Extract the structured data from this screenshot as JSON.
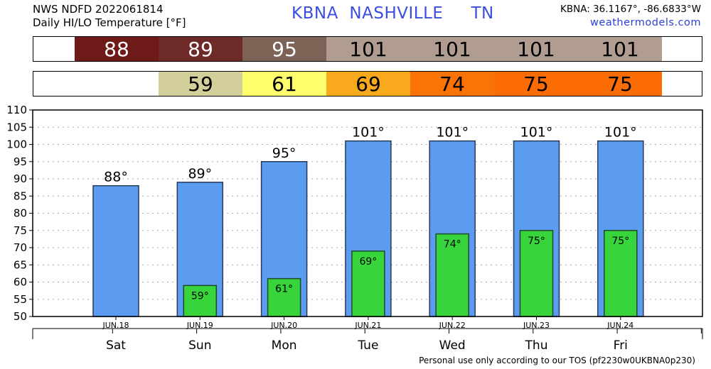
{
  "header": {
    "line1": "NWS NDFD 2022061814",
    "line2": "Daily HI/LO Temperature [°F]",
    "title": "KBNA  NASHVILLE     TN",
    "coords": "KBNA: 36.1167°, -86.6833°W",
    "site": "weathermodels.com"
  },
  "footer": "Personal use only according to our TOS (pf2230w0UKBNA0p230)",
  "highs_strip": [
    {
      "value": "88",
      "color": "#6e1a18",
      "text_color": "#ffffff"
    },
    {
      "value": "89",
      "color": "#6e2a26",
      "text_color": "#ffffff"
    },
    {
      "value": "95",
      "color": "#7d6256",
      "text_color": "#ffffff"
    },
    {
      "value": "101",
      "color": "#b09c91",
      "text_color": "#000000"
    },
    {
      "value": "101",
      "color": "#b09c91",
      "text_color": "#000000"
    },
    {
      "value": "101",
      "color": "#b09c91",
      "text_color": "#000000"
    },
    {
      "value": "101",
      "color": "#b09c91",
      "text_color": "#000000"
    }
  ],
  "lows_strip": [
    {
      "value": "",
      "color": "#ffffff",
      "text_color": "#000000"
    },
    {
      "value": "59",
      "color": "#d2cf9a",
      "text_color": "#000000"
    },
    {
      "value": "61",
      "color": "#ffff6e",
      "text_color": "#000000"
    },
    {
      "value": "69",
      "color": "#f9a91c",
      "text_color": "#000000"
    },
    {
      "value": "74",
      "color": "#fb7205",
      "text_color": "#000000"
    },
    {
      "value": "75",
      "color": "#fb6c05",
      "text_color": "#000000"
    },
    {
      "value": "75",
      "color": "#fb6c05",
      "text_color": "#000000"
    }
  ],
  "chart_data": {
    "type": "bar",
    "categories": [
      "Sat",
      "Sun",
      "Mon",
      "Tue",
      "Wed",
      "Thu",
      "Fri"
    ],
    "dates": [
      "JUN.18",
      "JUN.19",
      "JUN.20",
      "JUN.21",
      "JUN.22",
      "JUN.23",
      "JUN.24"
    ],
    "series": [
      {
        "values": [
          88,
          89,
          95,
          101,
          101,
          101,
          101
        ],
        "color": "#5b9cf0",
        "labels": [
          "88°",
          "89°",
          "95°",
          "101°",
          "101°",
          "101°",
          "101°"
        ]
      },
      {
        "values": [
          null,
          59,
          61,
          69,
          74,
          75,
          75
        ],
        "color": "#37d43b",
        "labels": [
          "",
          "59°",
          "61°",
          "69°",
          "74°",
          "75°",
          "75°"
        ]
      }
    ],
    "ylim": [
      50,
      110
    ],
    "yticks": [
      50,
      55,
      60,
      65,
      70,
      75,
      80,
      85,
      90,
      95,
      100,
      105,
      110
    ],
    "grid": true
  }
}
